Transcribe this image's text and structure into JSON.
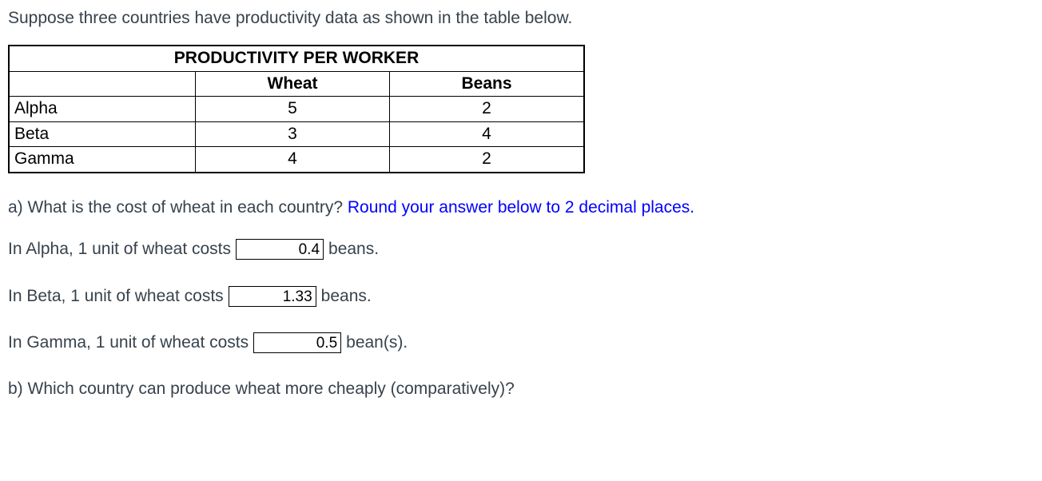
{
  "intro": "Suppose three countries have productivity data as shown in the table below.",
  "table": {
    "title": "PRODUCTIVITY PER WORKER",
    "headers": {
      "blank": "",
      "wheat": "Wheat",
      "beans": "Beans"
    },
    "rows": [
      {
        "country": "Alpha",
        "wheat": "5",
        "beans": "2"
      },
      {
        "country": "Beta",
        "wheat": "3",
        "beans": "4"
      },
      {
        "country": "Gamma",
        "wheat": "4",
        "beans": "2"
      }
    ],
    "col_widths": {
      "country": 220,
      "wheat": 230,
      "beans": 230
    }
  },
  "part_a": {
    "prompt_plain": "a) What is the cost of wheat in each country? ",
    "prompt_blue": "Round your answer below to 2 decimal places.",
    "lines": [
      {
        "pre": "In Alpha, 1 unit of wheat costs",
        "value": "0.4",
        "post": "beans."
      },
      {
        "pre": "In Beta, 1 unit of wheat costs",
        "value": "1.33",
        "post": "beans."
      },
      {
        "pre": "In Gamma, 1 unit of wheat costs",
        "value": "0.5",
        "post": "bean(s)."
      }
    ]
  },
  "part_b": {
    "prompt": "b) Which country can produce wheat more cheaply (comparatively)?"
  }
}
